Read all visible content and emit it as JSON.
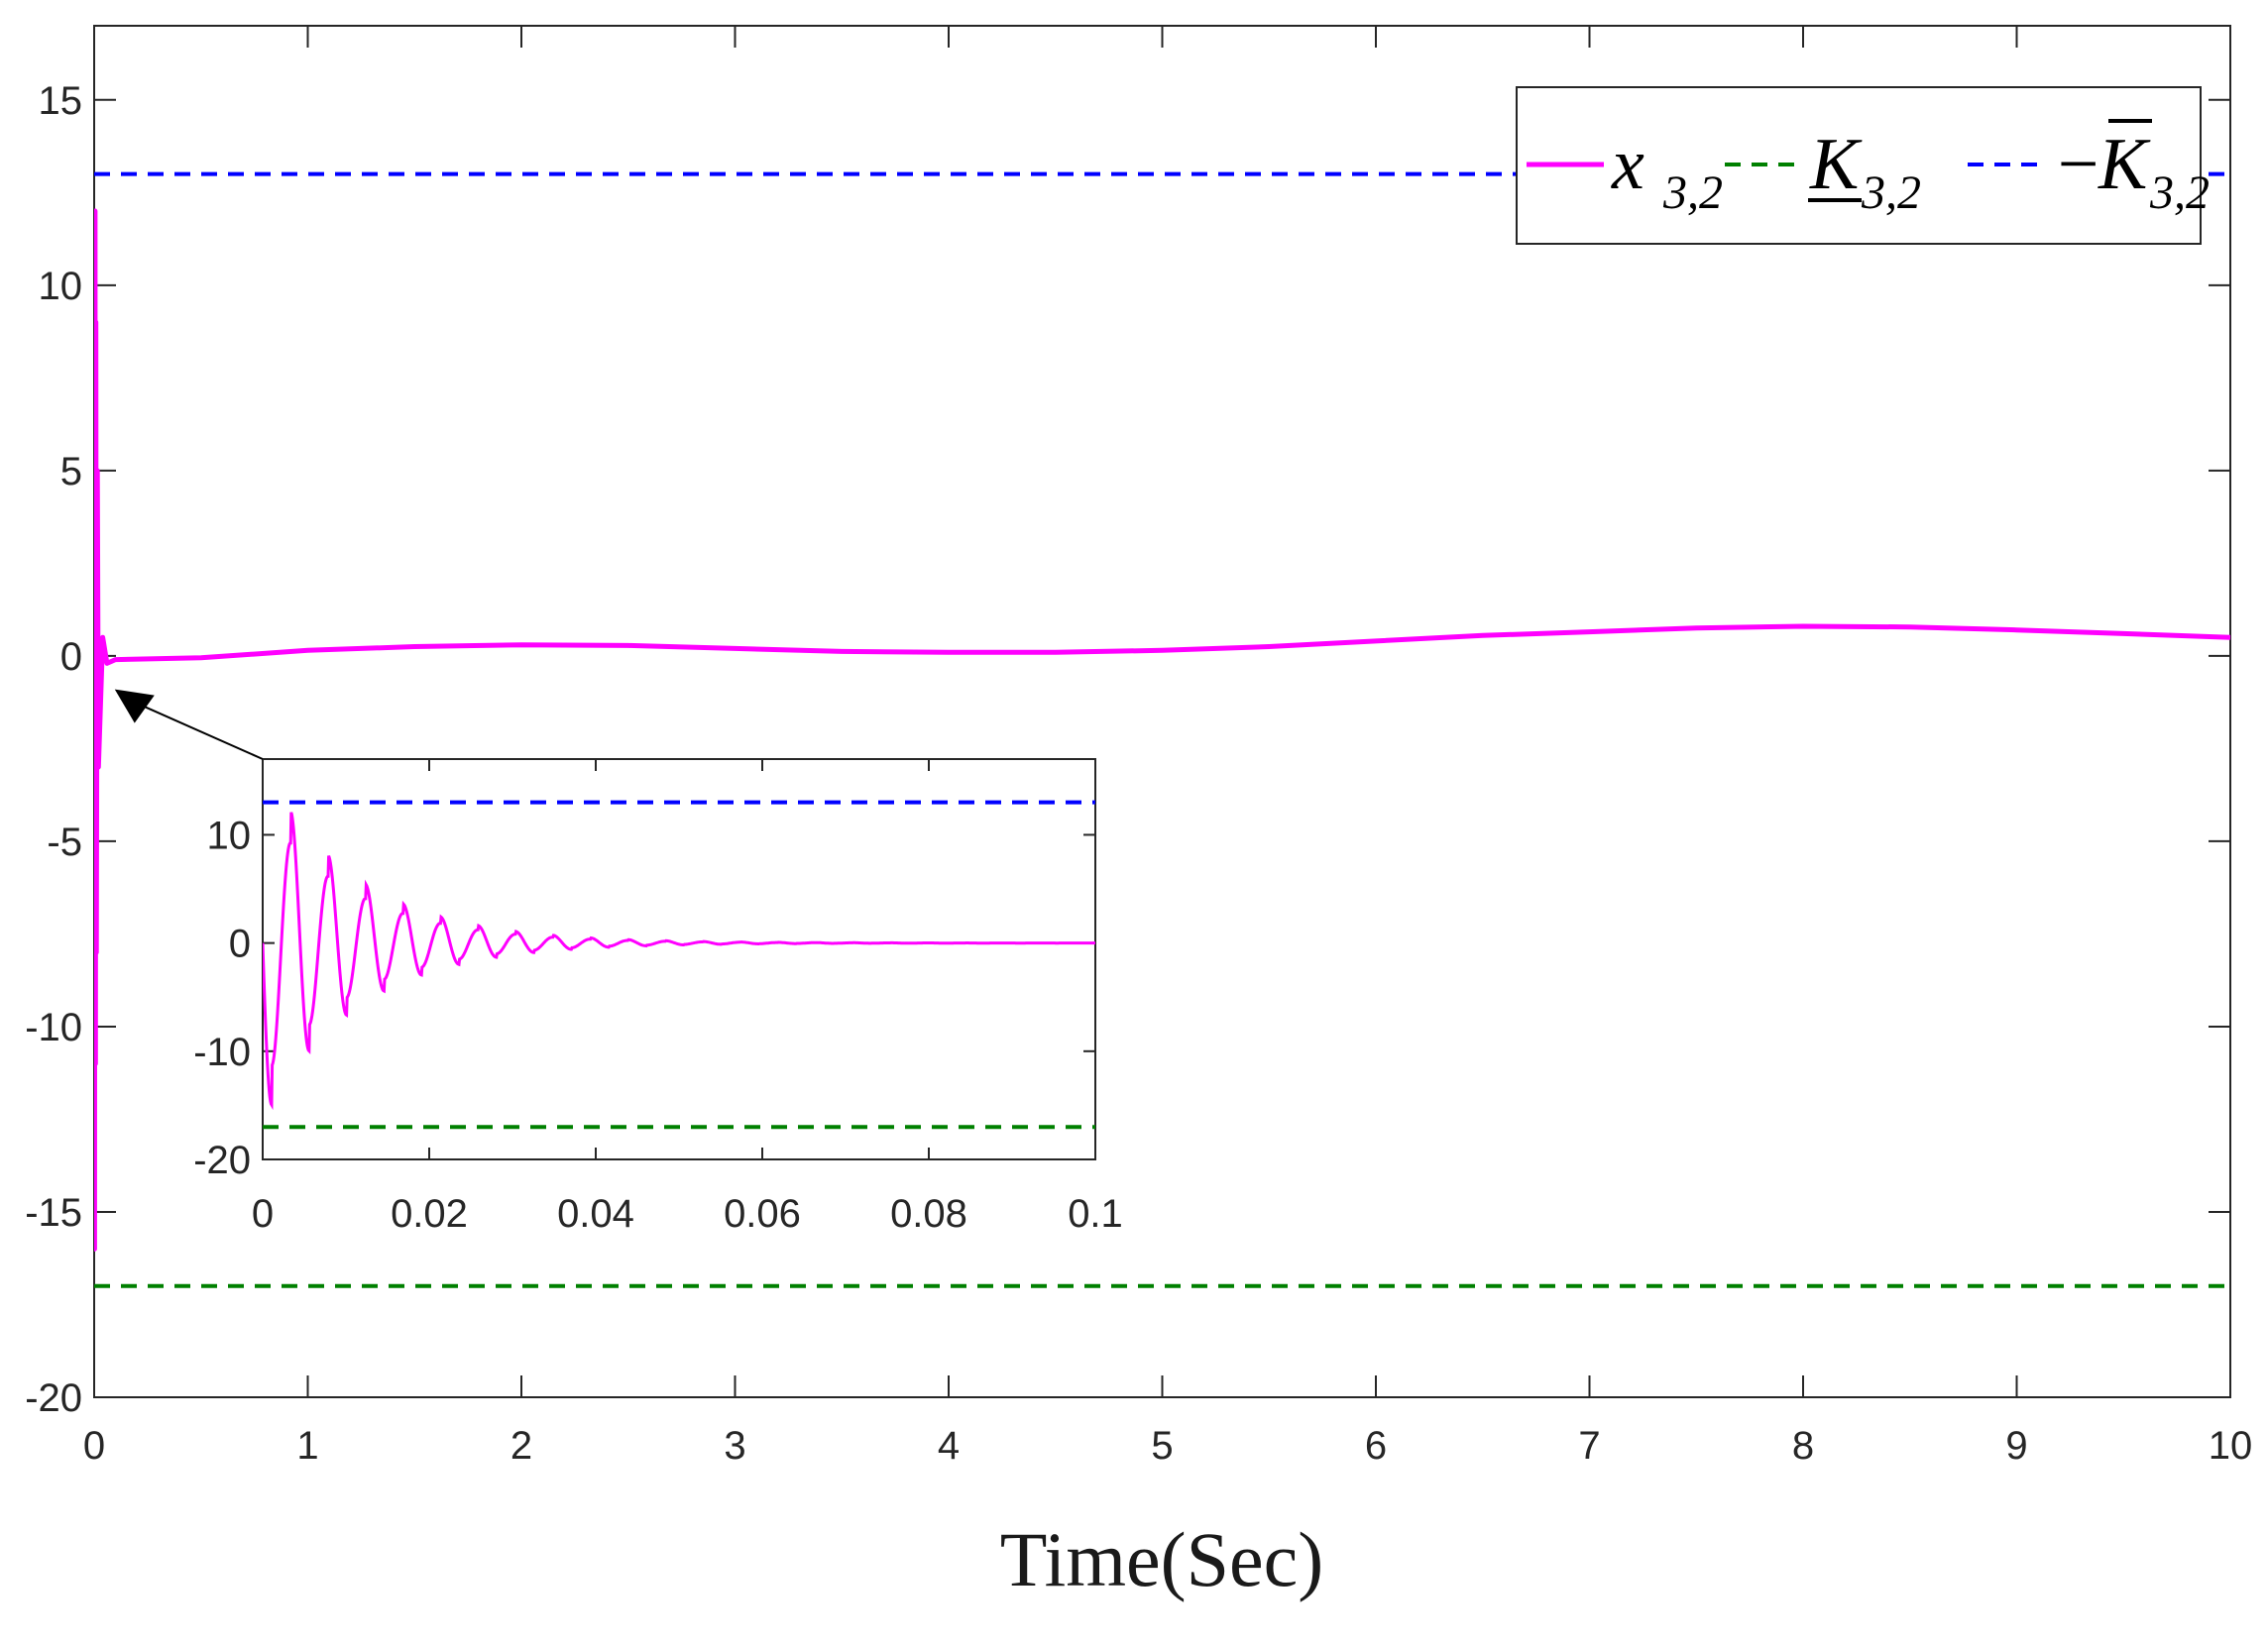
{
  "chart_data": [
    {
      "type": "line",
      "xlabel": "Time(Sec)",
      "ylabel": "",
      "xlim": [
        0,
        10
      ],
      "ylim": [
        -20,
        17
      ],
      "xticks": [
        0,
        1,
        2,
        3,
        4,
        5,
        6,
        7,
        8,
        9,
        10
      ],
      "xtick_labels": [
        "0",
        "1",
        "2",
        "3",
        "4",
        "5",
        "6",
        "7",
        "8",
        "9",
        "10"
      ],
      "yticks": [
        -20,
        -15,
        -10,
        -5,
        0,
        5,
        10,
        15
      ],
      "ytick_labels": [
        "-20",
        "-15",
        "-10",
        "-5",
        "0",
        "5",
        "10",
        "15"
      ],
      "grid": false,
      "legend_position": "top-right",
      "series": [
        {
          "name": "x_{3,2}",
          "style": "solid",
          "color": "#ff00ff",
          "x": [
            0,
            0.002,
            0.004,
            0.006,
            0.008,
            0.01,
            0.015,
            0.02,
            0.04,
            0.06,
            0.1,
            0.5,
            1.0,
            1.5,
            2.0,
            2.5,
            3.0,
            3.5,
            4.0,
            4.5,
            5.0,
            5.5,
            6.0,
            6.5,
            7.0,
            7.5,
            8.0,
            8.5,
            9.0,
            9.5,
            10.0
          ],
          "y": [
            0,
            -16,
            12,
            -11,
            9,
            -8,
            5,
            -3,
            0.5,
            -0.2,
            -0.1,
            -0.05,
            0.15,
            0.25,
            0.3,
            0.28,
            0.2,
            0.12,
            0.1,
            0.1,
            0.15,
            0.25,
            0.4,
            0.55,
            0.65,
            0.75,
            0.8,
            0.78,
            0.7,
            0.6,
            0.5
          ]
        },
        {
          "name": "K_{3,2}",
          "style": "dashed",
          "color": "#008000",
          "x": [
            0,
            10
          ],
          "y": [
            -17,
            -17
          ]
        },
        {
          "name": "-K_{3,2}",
          "style": "dashed",
          "color": "#0000ff",
          "x": [
            0,
            10
          ],
          "y": [
            13,
            13
          ]
        }
      ],
      "legend": {
        "entries": [
          {
            "base": "x",
            "sub": "3,2",
            "prefix": "",
            "decoration": "none"
          },
          {
            "base": "K",
            "sub": "3,2",
            "prefix": "",
            "decoration": "underline"
          },
          {
            "base": "K",
            "sub": "3,2",
            "prefix": "−",
            "decoration": "bar"
          }
        ]
      }
    },
    {
      "type": "line",
      "role": "inset",
      "xlim": [
        0,
        0.1
      ],
      "ylim": [
        -20,
        17
      ],
      "xticks": [
        0,
        0.02,
        0.04,
        0.06,
        0.08,
        0.1
      ],
      "xtick_labels": [
        "0",
        "0.02",
        "0.04",
        "0.06",
        "0.08",
        "0.1"
      ],
      "yticks": [
        -20,
        -10,
        0,
        10
      ],
      "ytick_labels": [
        "-20",
        "-10",
        "0",
        "10"
      ],
      "oscillation": {
        "period": 0.0045,
        "first_min": -16.5,
        "first_max": 12.5,
        "decay_rate": 90,
        "settles_to": 0
      },
      "series": [
        {
          "name": "x_{3,2}",
          "style": "solid",
          "color": "#ff00ff"
        },
        {
          "name": "K_{3,2}",
          "style": "dashed",
          "color": "#008000",
          "x": [
            0,
            0.1
          ],
          "y": [
            -17,
            -17
          ]
        },
        {
          "name": "-K_{3,2}",
          "style": "dashed",
          "color": "#0000ff",
          "x": [
            0,
            0.1
          ],
          "y": [
            13,
            13
          ]
        }
      ]
    }
  ]
}
